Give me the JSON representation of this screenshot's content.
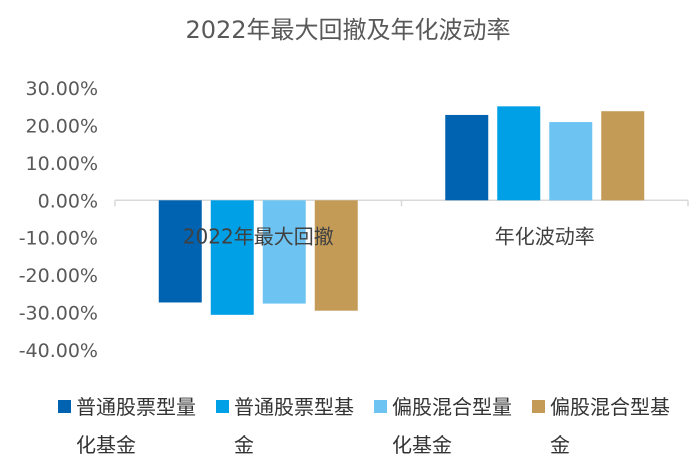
{
  "chart_data": {
    "type": "bar",
    "title": "2022年最大回撤及年化波动率",
    "categories": [
      "2022年最大回撤",
      "年化波动率"
    ],
    "series": [
      {
        "name": "普通股票型量化基金",
        "values": [
          -27.3,
          22.8
        ],
        "color": "#0063B1"
      },
      {
        "name": "普通股票型基金",
        "values": [
          -30.6,
          25.1
        ],
        "color": "#00A0E6"
      },
      {
        "name": "偏股混合型量化基金",
        "values": [
          -27.6,
          20.9
        ],
        "color": "#6DC4F2"
      },
      {
        "name": "偏股混合型基金",
        "values": [
          -29.5,
          23.8
        ],
        "color": "#C39B57"
      }
    ],
    "ylim": [
      -40,
      30
    ],
    "yticks": [
      -40,
      -30,
      -20,
      -10,
      0,
      10,
      20,
      30
    ],
    "ytick_labels": [
      "-40.00%",
      "-30.00%",
      "-20.00%",
      "-10.00%",
      "0.00%",
      "10.00%",
      "20.00%",
      "30.00%"
    ],
    "xlabel": "",
    "ylabel": "",
    "grid": false,
    "legend": "bottom"
  },
  "legend_items": [
    {
      "label": "普通股票型量化基金"
    },
    {
      "label": "普通股票型基金"
    },
    {
      "label": "偏股混合型量化基金"
    },
    {
      "label": "偏股混合型基金"
    }
  ]
}
